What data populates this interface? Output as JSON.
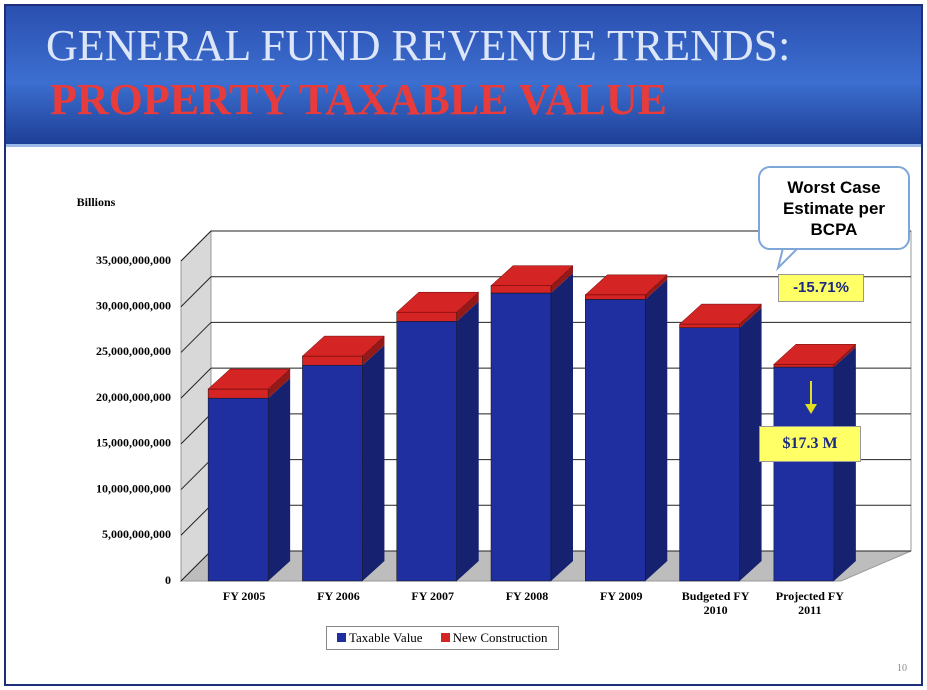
{
  "chart_data": {
    "type": "bar",
    "stacked": true,
    "title": "GENERAL FUND REVENUE TRENDS:",
    "subtitle": "PROPERTY TAXABLE VALUE",
    "y_label": "Billions",
    "categories": [
      "FY 2005",
      "FY 2006",
      "FY 2007",
      "FY 2008",
      "FY 2009",
      "Budgeted FY 2010",
      "Projected FY 2011"
    ],
    "series": [
      {
        "name": "Taxable Value",
        "color": "#1f2fa0",
        "values": [
          20000000000,
          23600000000,
          28400000000,
          31500000000,
          30800000000,
          27700000000,
          23400000000
        ]
      },
      {
        "name": "New Construction",
        "color": "#d42424",
        "values": [
          1000000000,
          1000000000,
          1000000000,
          800000000,
          500000000,
          400000000,
          300000000
        ]
      }
    ],
    "ylim": [
      0,
      35000000000
    ],
    "yticks": [
      {
        "value": 0,
        "label": "0"
      },
      {
        "value": 5000000000,
        "label": "5,000,000,000"
      },
      {
        "value": 10000000000,
        "label": "10,000,000,000"
      },
      {
        "value": 15000000000,
        "label": "15,000,000,000"
      },
      {
        "value": 20000000000,
        "label": "20,000,000,000"
      },
      {
        "value": 25000000000,
        "label": "25,000,000,000"
      },
      {
        "value": 30000000000,
        "label": "30,000,000,000"
      },
      {
        "value": 35000000000,
        "label": "35,000,000,000"
      }
    ],
    "grid": true,
    "legend": "bottom",
    "annotations": [
      "Worst Case Estimate per BCPA",
      "-15.71%",
      "$17.3 M"
    ]
  },
  "page_number": "10"
}
